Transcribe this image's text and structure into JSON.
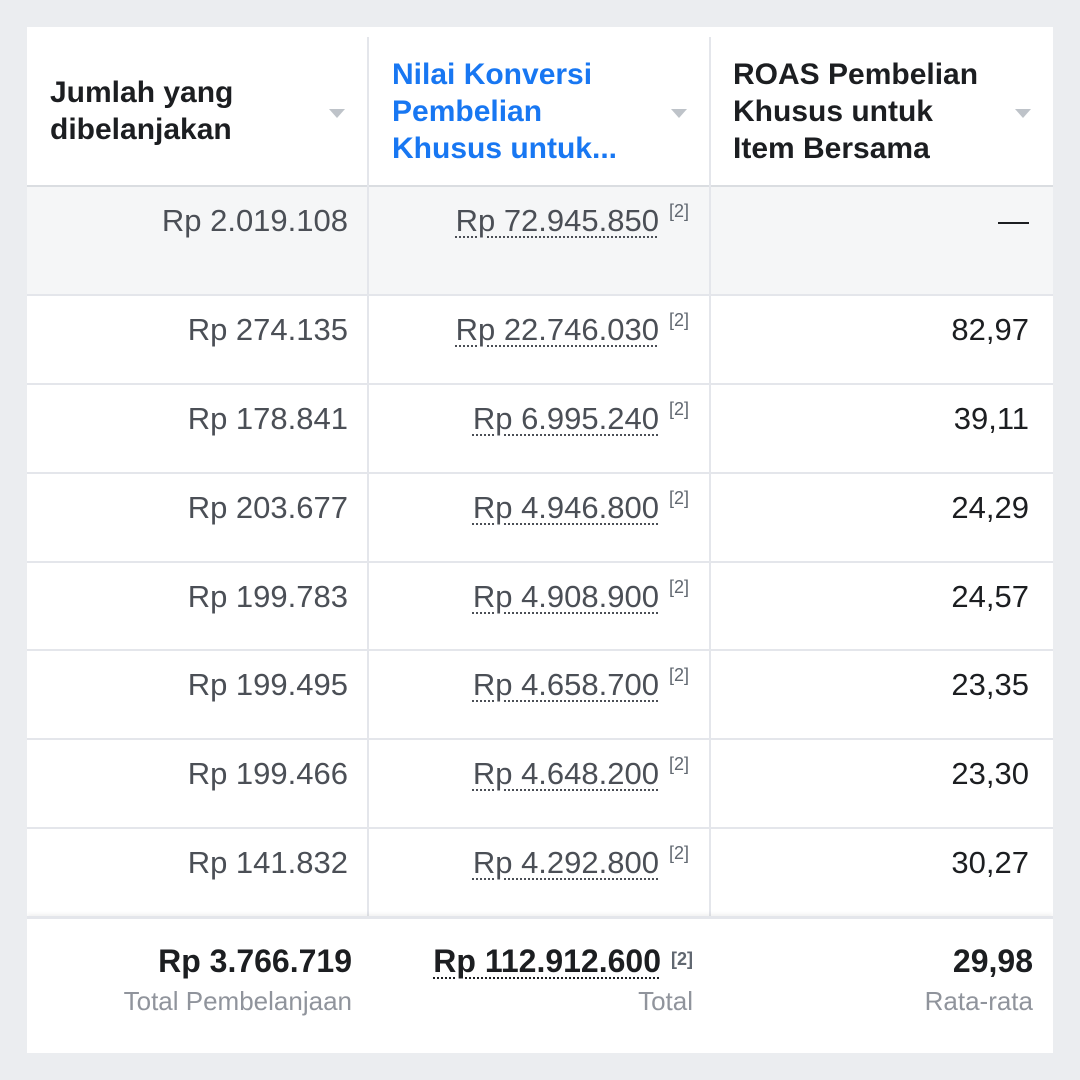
{
  "table": {
    "columns": [
      {
        "label": "Jumlah yang dibelanjakan",
        "active": false
      },
      {
        "label": "Nilai Konversi Pembelian Khusus untuk...",
        "active": true
      },
      {
        "label": "ROAS Pembelian Khusus untuk Item Bersama",
        "active": false
      }
    ],
    "note_marker": "[2]",
    "rows": [
      {
        "spend": "Rp 2.019.108",
        "conversion_value": "Rp 72.945.850",
        "roas": "—"
      },
      {
        "spend": "Rp 274.135",
        "conversion_value": "Rp 22.746.030",
        "roas": "82,97"
      },
      {
        "spend": "Rp 178.841",
        "conversion_value": "Rp 6.995.240",
        "roas": "39,11"
      },
      {
        "spend": "Rp 203.677",
        "conversion_value": "Rp 4.946.800",
        "roas": "24,29"
      },
      {
        "spend": "Rp 199.783",
        "conversion_value": "Rp 4.908.900",
        "roas": "24,57"
      },
      {
        "spend": "Rp 199.495",
        "conversion_value": "Rp 4.658.700",
        "roas": "23,35"
      },
      {
        "spend": "Rp 199.466",
        "conversion_value": "Rp 4.648.200",
        "roas": "23,30"
      },
      {
        "spend": "Rp 141.832",
        "conversion_value": "Rp 4.292.800",
        "roas": "30,27"
      }
    ],
    "footer": {
      "spend_total": "Rp 3.766.719",
      "spend_label": "Total Pembelanjaan",
      "conversion_total": "Rp 112.912.600",
      "conversion_label": "Total",
      "roas_average": "29,98",
      "roas_label": "Rata-rata"
    }
  }
}
